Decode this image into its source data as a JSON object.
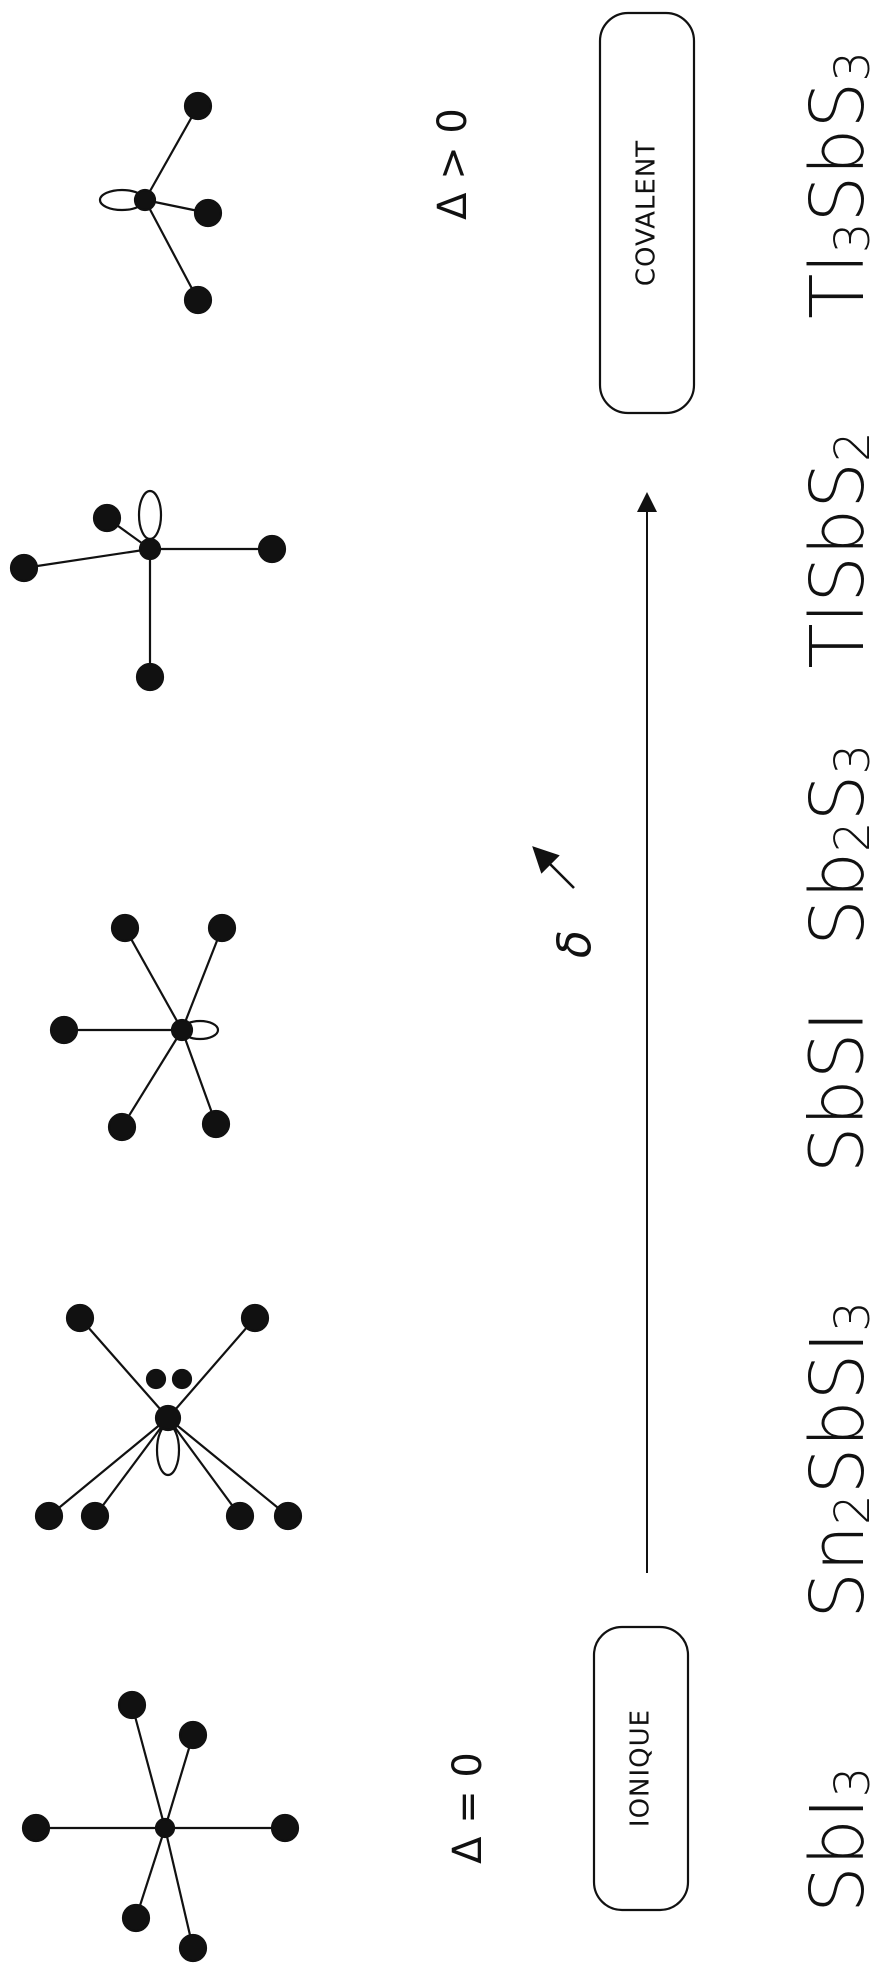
{
  "diagram": {
    "left_condition": "Δ = 0",
    "right_condition": "Δ > 0",
    "left_bond_label": "IONIQUE",
    "right_bond_label": "COVALENT",
    "arrow_label": "δ",
    "compounds": [
      {
        "base": "SbI",
        "sub": "3"
      },
      {
        "base": "Sn",
        "sub": "2",
        "rest": "SbSI",
        "sub2": "3"
      },
      {
        "base": "SbSI"
      },
      {
        "base": "Sb",
        "sub": "2",
        "rest": "S",
        "sub2": "3"
      },
      {
        "base": "TlSbS",
        "sub": "2"
      },
      {
        "base": "Tl",
        "sub": "3",
        "rest": "SbS",
        "sub2": "3"
      }
    ]
  }
}
